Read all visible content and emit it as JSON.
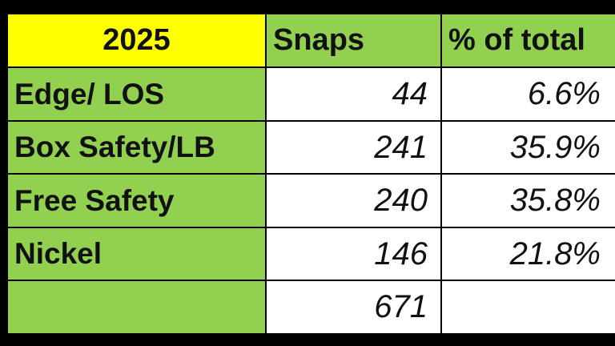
{
  "table": {
    "header": [
      "2025",
      "Snaps",
      "% of total"
    ],
    "rows": [
      [
        "Edge/ LOS",
        "44",
        "6.6%"
      ],
      [
        "Box Safety/LB",
        "241",
        "35.9%"
      ],
      [
        "Free Safety",
        "240",
        "35.8%"
      ],
      [
        "Nickel",
        "146",
        "21.8%"
      ]
    ],
    "total": "671"
  }
}
